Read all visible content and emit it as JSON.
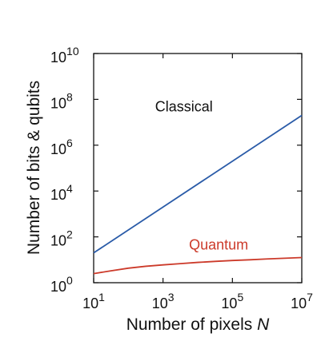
{
  "chart_data": {
    "type": "line",
    "xlabel": "Number of pixels",
    "xlabel_var": "N",
    "ylabel": "Number of bits & qubits",
    "x_scale": "log",
    "y_scale": "log",
    "xlim": [
      10,
      10000000
    ],
    "ylim": [
      1,
      10000000000
    ],
    "x_ticks": [
      {
        "base": "10",
        "exp": "1",
        "value": 10
      },
      {
        "base": "10",
        "exp": "3",
        "value": 1000
      },
      {
        "base": "10",
        "exp": "5",
        "value": 100000
      },
      {
        "base": "10",
        "exp": "7",
        "value": 10000000
      }
    ],
    "y_ticks": [
      {
        "base": "10",
        "exp": "0",
        "value": 1
      },
      {
        "base": "10",
        "exp": "2",
        "value": 100
      },
      {
        "base": "10",
        "exp": "4",
        "value": 10000
      },
      {
        "base": "10",
        "exp": "6",
        "value": 1000000
      },
      {
        "base": "10",
        "exp": "8",
        "value": 100000000
      },
      {
        "base": "10",
        "exp": "10",
        "value": 10000000000
      }
    ],
    "grid": false,
    "series": [
      {
        "name": "Classical",
        "color": "#2a5ba8",
        "x": [
          10,
          10000000
        ],
        "y": [
          20,
          20000000
        ],
        "label_at": {
          "x": 4000,
          "y": 30000000
        }
      },
      {
        "name": "Quantum",
        "color": "#cc3a2a",
        "x": [
          10,
          31.6,
          100,
          316,
          1000,
          3162,
          10000,
          31623,
          100000,
          316228,
          1000000,
          3162278,
          10000000
        ],
        "y": [
          2.5,
          3.3,
          4.3,
          5.2,
          6.0,
          6.8,
          7.7,
          8.5,
          9.3,
          10.0,
          10.9,
          11.7,
          12.5
        ],
        "label_at": {
          "x": 40000,
          "y": 28
        }
      }
    ]
  }
}
